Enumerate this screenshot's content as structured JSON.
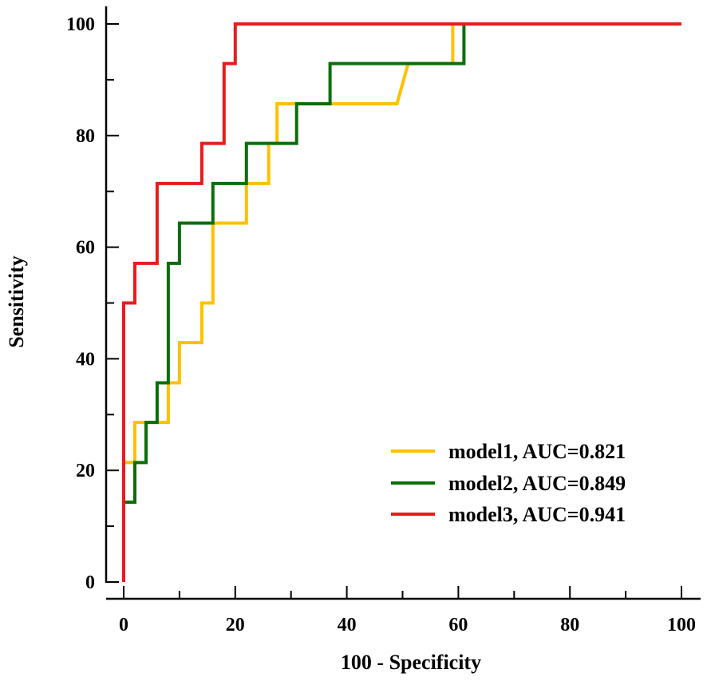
{
  "chart_data": {
    "type": "line",
    "title": "",
    "xlabel": "100 - Specificity",
    "ylabel": "Sensitivity",
    "xlim": [
      0,
      100
    ],
    "ylim": [
      0,
      100
    ],
    "x_ticks": [
      0,
      20,
      40,
      60,
      80,
      100
    ],
    "y_ticks": [
      0,
      20,
      40,
      60,
      80,
      100
    ],
    "x_tick_labels": [
      "0",
      "20",
      "40",
      "60",
      "80",
      "100"
    ],
    "y_tick_labels": [
      "0",
      "20",
      "40",
      "60",
      "80",
      "100"
    ],
    "legend_position": "bottom-right",
    "series": [
      {
        "name": "model1, AUC=0.821",
        "color": "#FFC000",
        "points": [
          [
            0,
            0
          ],
          [
            0,
            21.4
          ],
          [
            2,
            21.4
          ],
          [
            2,
            28.6
          ],
          [
            8,
            28.6
          ],
          [
            8,
            35.7
          ],
          [
            10,
            35.7
          ],
          [
            10,
            42.9
          ],
          [
            14,
            42.9
          ],
          [
            14,
            50
          ],
          [
            16,
            50
          ],
          [
            16,
            64.3
          ],
          [
            22,
            64.3
          ],
          [
            22,
            71.4
          ],
          [
            26,
            71.4
          ],
          [
            26,
            78.6
          ],
          [
            27.5,
            78.6
          ],
          [
            27.5,
            85.7
          ],
          [
            49,
            85.7
          ],
          [
            51,
            92.9
          ],
          [
            59,
            92.9
          ],
          [
            59,
            100
          ],
          [
            100,
            100
          ]
        ]
      },
      {
        "name": "model2, AUC=0.849",
        "color": "#0A6E0A",
        "points": [
          [
            0,
            0
          ],
          [
            0,
            14.3
          ],
          [
            2,
            14.3
          ],
          [
            2,
            21.4
          ],
          [
            4,
            21.4
          ],
          [
            4,
            28.6
          ],
          [
            6,
            28.6
          ],
          [
            6,
            35.7
          ],
          [
            8,
            35.7
          ],
          [
            8,
            57.1
          ],
          [
            10,
            57.1
          ],
          [
            10,
            64.3
          ],
          [
            16,
            64.3
          ],
          [
            16,
            71.4
          ],
          [
            22,
            71.4
          ],
          [
            22,
            78.6
          ],
          [
            31,
            78.6
          ],
          [
            31,
            85.7
          ],
          [
            37,
            85.7
          ],
          [
            37,
            92.9
          ],
          [
            61,
            92.9
          ],
          [
            61,
            100
          ],
          [
            100,
            100
          ]
        ]
      },
      {
        "name": "model3, AUC=0.941",
        "color": "#E81C1C",
        "points": [
          [
            0,
            0
          ],
          [
            0,
            50
          ],
          [
            2,
            50
          ],
          [
            2,
            57.1
          ],
          [
            6,
            57.1
          ],
          [
            6,
            71.4
          ],
          [
            14,
            71.4
          ],
          [
            14,
            78.6
          ],
          [
            18,
            78.6
          ],
          [
            18,
            92.9
          ],
          [
            20,
            92.9
          ],
          [
            20,
            100
          ],
          [
            100,
            100
          ]
        ]
      }
    ]
  }
}
